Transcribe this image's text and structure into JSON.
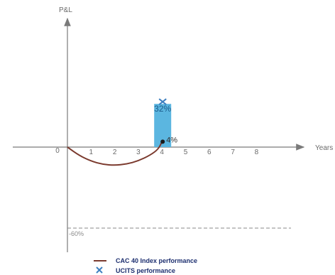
{
  "chart_data": {
    "type": "line",
    "x_axis_label": "Years",
    "y_axis_label": "P&L",
    "x_ticks": [
      "0",
      "1",
      "2",
      "3",
      "4",
      "5",
      "6",
      "7",
      "8"
    ],
    "xlim": [
      0,
      8
    ],
    "ylim": [
      -60,
      32
    ],
    "grid": false,
    "series": [
      {
        "name": "CAC 40 Index performance",
        "type": "line",
        "color": "#7b3a2e",
        "x": [
          0,
          0.5,
          1,
          1.5,
          2,
          2.5,
          3,
          3.5,
          3.85
        ],
        "y": [
          0,
          -6.2,
          -10.4,
          -12.8,
          -13.5,
          -12.6,
          -10.2,
          -6.0,
          -1.5
        ]
      },
      {
        "name": "UCITS performance",
        "type": "bar",
        "color": "#5bb6e0",
        "x": 4,
        "y": 32,
        "label": "32%"
      }
    ],
    "end_point": {
      "x": 4,
      "y": 4,
      "label": "4%"
    },
    "reference_line": {
      "y": -60,
      "label": "-60%",
      "style": "dashed"
    },
    "legend": {
      "position": "bottom-left",
      "entries": [
        {
          "label": "CAC 40 Index performance",
          "marker": "line"
        },
        {
          "label": "UCITS performance",
          "marker": "x"
        }
      ]
    }
  }
}
